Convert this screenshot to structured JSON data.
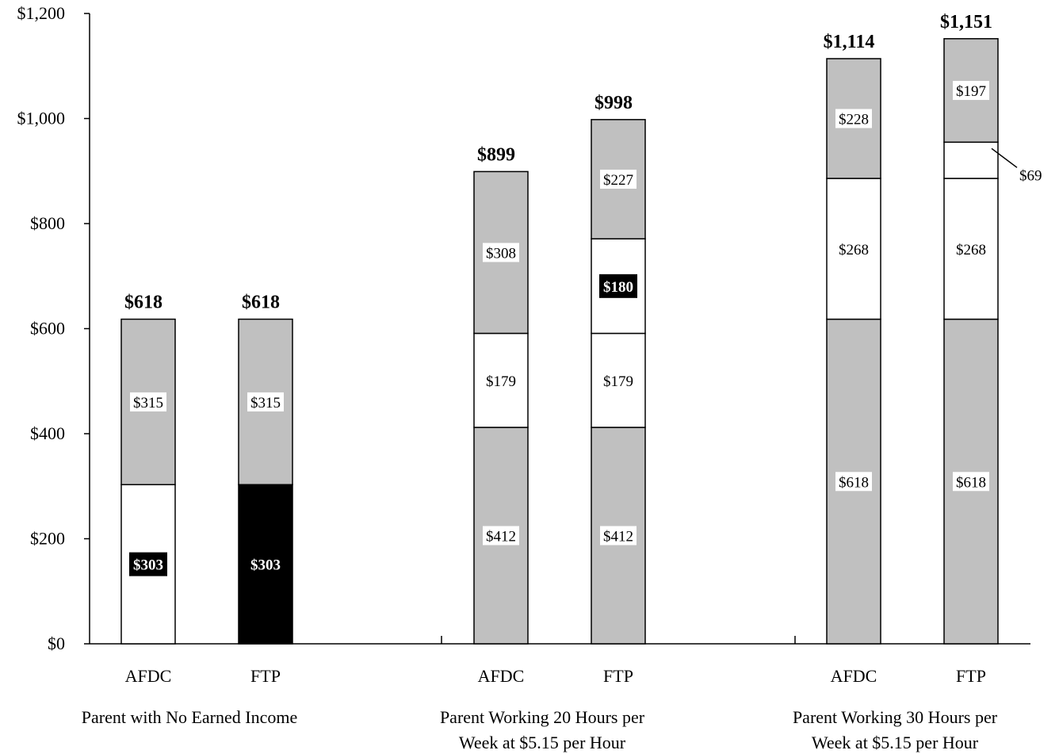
{
  "chart_data": {
    "type": "bar",
    "stacked": true,
    "ylim": [
      0,
      1200
    ],
    "yticks": [
      0,
      200,
      400,
      600,
      800,
      1000,
      1200
    ],
    "ytick_labels": [
      "$0",
      "$200",
      "$400",
      "$600",
      "$800",
      "$1,000",
      "$1,200"
    ],
    "grid": false,
    "groups": [
      {
        "label_lines": [
          "Parent with No Earned Income"
        ],
        "bars": [
          {
            "label": "AFDC",
            "total_label": "$618",
            "segments": [
              {
                "value": 303,
                "fill": "#ffffff",
                "label": "$303",
                "label_style": "inverse"
              },
              {
                "value": 315,
                "fill": "#c0c0c0",
                "label": "$315",
                "label_style": "box"
              }
            ]
          },
          {
            "label": "FTP",
            "total_label": "$618",
            "segments": [
              {
                "value": 303,
                "fill": "#000000",
                "label": "$303",
                "label_style": "inverse"
              },
              {
                "value": 315,
                "fill": "#c0c0c0",
                "label": "$315",
                "label_style": "box"
              }
            ]
          }
        ]
      },
      {
        "label_lines": [
          "Parent Working 20 Hours per",
          "Week at $5.15 per Hour"
        ],
        "bars": [
          {
            "label": "AFDC",
            "total_label": "$899",
            "segments": [
              {
                "value": 412,
                "fill": "#c0c0c0",
                "label": "$412",
                "label_style": "box"
              },
              {
                "value": 179,
                "fill": "#ffffff",
                "label": "$179",
                "label_style": "box"
              },
              {
                "value": 308,
                "fill": "#c0c0c0",
                "label": "$308",
                "label_style": "box"
              }
            ]
          },
          {
            "label": "FTP",
            "total_label": "$998",
            "segments": [
              {
                "value": 412,
                "fill": "#c0c0c0",
                "label": "$412",
                "label_style": "box"
              },
              {
                "value": 179,
                "fill": "#ffffff",
                "label": "$179",
                "label_style": "box"
              },
              {
                "value": 180,
                "fill": "#ffffff",
                "label": "$180",
                "label_style": "inverse"
              },
              {
                "value": 227,
                "fill": "#c0c0c0",
                "label": "$227",
                "label_style": "box"
              }
            ]
          }
        ]
      },
      {
        "label_lines": [
          "Parent Working 30 Hours per",
          "Week at $5.15 per Hour"
        ],
        "bars": [
          {
            "label": "AFDC",
            "total_label": "$1,114",
            "segments": [
              {
                "value": 618,
                "fill": "#c0c0c0",
                "label": "$618",
                "label_style": "box"
              },
              {
                "value": 268,
                "fill": "#ffffff",
                "label": "$268",
                "label_style": "box"
              },
              {
                "value": 228,
                "fill": "#c0c0c0",
                "label": "$228",
                "label_style": "box"
              }
            ]
          },
          {
            "label": "FTP",
            "total_label": "$1,151",
            "segments": [
              {
                "value": 618,
                "fill": "#c0c0c0",
                "label": "$618",
                "label_style": "box"
              },
              {
                "value": 268,
                "fill": "#ffffff",
                "label": "$268",
                "label_style": "box"
              },
              {
                "value": 69,
                "fill": "#ffffff",
                "label": "$69",
                "label_style": "callout"
              },
              {
                "value": 197,
                "fill": "#c0c0c0",
                "label": "$197",
                "label_style": "box"
              }
            ]
          }
        ]
      }
    ]
  }
}
